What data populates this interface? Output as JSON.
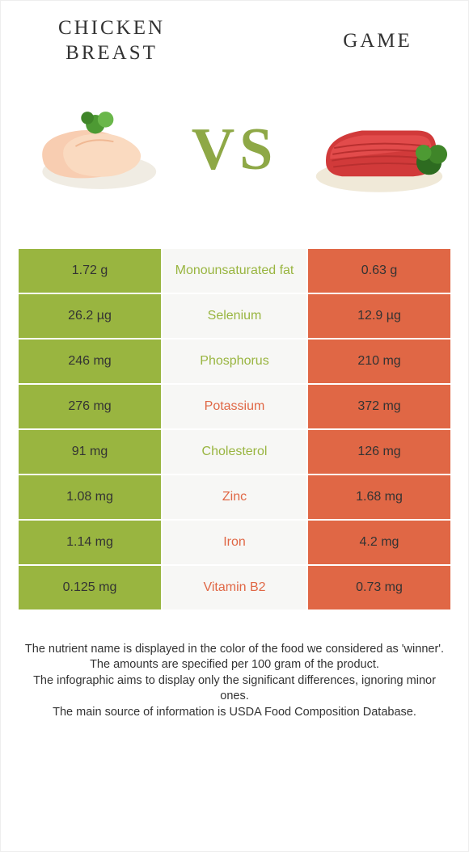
{
  "colors": {
    "chicken": "#99b540",
    "game": "#e06745",
    "bg_mid": "#f7f7f5",
    "white": "#ffffff",
    "text": "#333333"
  },
  "header": {
    "left_title": "CHICKEN\nBREAST",
    "right_title": "GAME",
    "vs": "VS"
  },
  "rows": [
    {
      "nutrient": "Monounsaturated fat",
      "left": "1.72 g",
      "right": "0.63 g",
      "winner": "chicken"
    },
    {
      "nutrient": "Selenium",
      "left": "26.2 µg",
      "right": "12.9 µg",
      "winner": "chicken"
    },
    {
      "nutrient": "Phosphorus",
      "left": "246 mg",
      "right": "210 mg",
      "winner": "chicken"
    },
    {
      "nutrient": "Potassium",
      "left": "276 mg",
      "right": "372 mg",
      "winner": "game"
    },
    {
      "nutrient": "Cholesterol",
      "left": "91 mg",
      "right": "126 mg",
      "winner": "chicken"
    },
    {
      "nutrient": "Zinc",
      "left": "1.08 mg",
      "right": "1.68 mg",
      "winner": "game"
    },
    {
      "nutrient": "Iron",
      "left": "1.14 mg",
      "right": "4.2 mg",
      "winner": "game"
    },
    {
      "nutrient": "Vitamin B2",
      "left": "0.125 mg",
      "right": "0.73 mg",
      "winner": "game"
    }
  ],
  "footer": [
    "The nutrient name is displayed in the color of the food we considered as 'winner'.",
    "The amounts are specified per 100 gram of the product.",
    "The infographic aims to display only the significant differences, ignoring minor ones.",
    "The main source of information is USDA Food Composition Database."
  ]
}
